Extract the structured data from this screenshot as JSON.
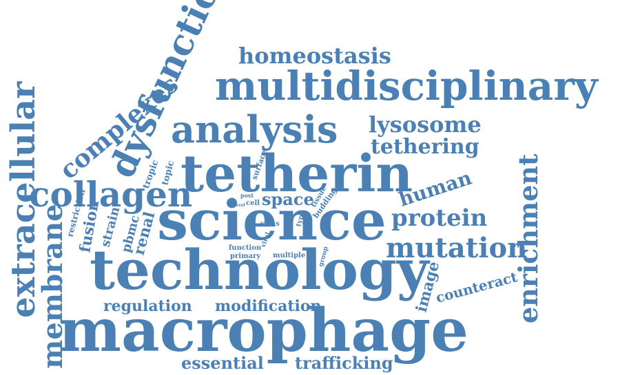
{
  "color": "#4a80b4",
  "words": [
    {
      "text": "macrophage"
    },
    {
      "text": "technology"
    },
    {
      "text": "science"
    },
    {
      "text": "tetherin"
    },
    {
      "text": "multidisciplinary"
    },
    {
      "text": "analysis"
    },
    {
      "text": "extracellular"
    },
    {
      "text": "membrane"
    },
    {
      "text": "collagen"
    },
    {
      "text": "dysfunction"
    },
    {
      "text": "complexes"
    },
    {
      "text": "homeostasis"
    },
    {
      "text": "lysosome"
    },
    {
      "text": "tethering"
    },
    {
      "text": "enrichment"
    },
    {
      "text": "human"
    },
    {
      "text": "protein"
    },
    {
      "text": "mutation"
    },
    {
      "text": "counteract"
    },
    {
      "text": "image"
    },
    {
      "text": "regulation"
    },
    {
      "text": "modification"
    },
    {
      "text": "essential"
    },
    {
      "text": "trafficking"
    },
    {
      "text": "space"
    },
    {
      "text": "fusion"
    },
    {
      "text": "strain"
    },
    {
      "text": "pbmc"
    },
    {
      "text": "renal"
    },
    {
      "text": "restriction"
    },
    {
      "text": "tropic"
    },
    {
      "text": "topic"
    },
    {
      "text": "surface"
    },
    {
      "text": "budding"
    },
    {
      "text": "tissue"
    },
    {
      "text": "post"
    },
    {
      "text": "cell"
    },
    {
      "text": "level"
    },
    {
      "text": "virus"
    },
    {
      "text": "viral"
    },
    {
      "text": "type"
    },
    {
      "text": "group"
    },
    {
      "text": "function"
    },
    {
      "text": "primary"
    },
    {
      "text": "multiple"
    }
  ]
}
